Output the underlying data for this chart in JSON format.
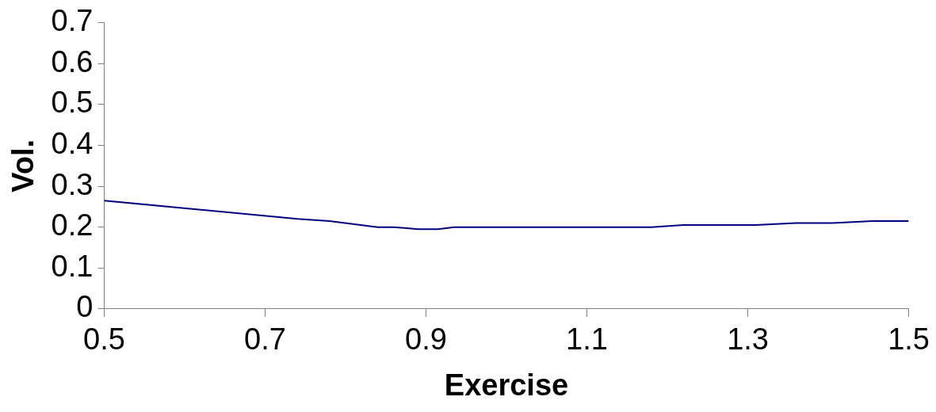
{
  "chart_data": {
    "type": "line",
    "xlabel": "Exercise",
    "ylabel": "Vol.",
    "x": [
      0.5,
      0.74,
      0.78,
      0.84,
      0.86,
      0.89,
      0.915,
      0.935,
      1.18,
      1.22,
      1.31,
      1.36,
      1.405,
      1.455,
      1.5
    ],
    "series": [
      {
        "color": "#000080",
        "values": [
          0.265,
          0.22,
          0.215,
          0.2,
          0.2,
          0.195,
          0.195,
          0.2,
          0.2,
          0.205,
          0.205,
          0.21,
          0.21,
          0.215,
          0.215
        ]
      }
    ],
    "xlim": [
      0.5,
      1.5
    ],
    "xticks": [
      0.5,
      0.7,
      0.9,
      1.1,
      1.3,
      1.5
    ],
    "ylim": [
      0,
      0.7
    ],
    "yticks": [
      0,
      0.1,
      0.2,
      0.3,
      0.4,
      0.5,
      0.6,
      0.7
    ],
    "grid": false,
    "legend": false,
    "marker": "none",
    "line_style": "solid"
  }
}
